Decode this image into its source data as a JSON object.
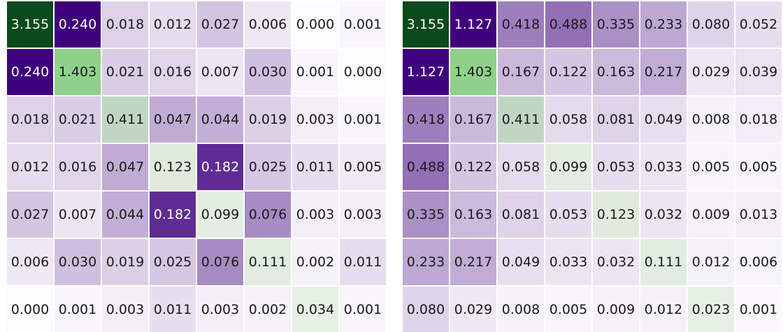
{
  "chart_data": [
    {
      "type": "heatmap",
      "title": "",
      "xlabel": "",
      "ylabel": "",
      "values": [
        [
          3.155,
          0.24,
          0.018,
          0.012,
          0.027,
          0.006,
          0.0,
          0.001
        ],
        [
          0.24,
          1.403,
          0.021,
          0.016,
          0.007,
          0.03,
          0.001,
          0.0
        ],
        [
          0.018,
          0.021,
          0.411,
          0.047,
          0.044,
          0.019,
          0.003,
          0.001
        ],
        [
          0.012,
          0.016,
          0.047,
          0.123,
          0.182,
          0.025,
          0.011,
          0.005
        ],
        [
          0.027,
          0.007,
          0.044,
          0.182,
          0.099,
          0.076,
          0.003,
          0.003
        ],
        [
          0.006,
          0.03,
          0.019,
          0.025,
          0.076,
          0.111,
          0.002,
          0.011
        ],
        [
          0.0,
          0.001,
          0.003,
          0.011,
          0.003,
          0.002,
          0.034,
          0.001
        ]
      ],
      "labels": [
        [
          "3.155",
          "0.240",
          "0.018",
          "0.012",
          "0.027",
          "0.006",
          "0.000",
          "0.001"
        ],
        [
          "0.240",
          "1.403",
          "0.021",
          "0.016",
          "0.007",
          "0.030",
          "0.001",
          "0.000"
        ],
        [
          "0.018",
          "0.021",
          "0.411",
          "0.047",
          "0.044",
          "0.019",
          "0.003",
          "0.001"
        ],
        [
          "0.012",
          "0.016",
          "0.047",
          "0.123",
          "0.182",
          "0.025",
          "0.011",
          "0.005"
        ],
        [
          "0.027",
          "0.007",
          "0.044",
          "0.182",
          "0.099",
          "0.076",
          "0.003",
          "0.003"
        ],
        [
          "0.006",
          "0.030",
          "0.019",
          "0.025",
          "0.076",
          "0.111",
          "0.002",
          "0.011"
        ],
        [
          "0.000",
          "0.001",
          "0.003",
          "0.011",
          "0.003",
          "0.002",
          "0.034",
          "0.001"
        ]
      ],
      "colormap": "diagonal green (Greens), off-diagonal purple (Purples)",
      "colors": {
        "diagonal_high": "#0b4a1c",
        "diagonal_low": "#f4fbf1",
        "offdiag_high": "#3f007d",
        "offdiag_low": "#fcfbfd"
      },
      "grid": true
    },
    {
      "type": "heatmap",
      "title": "",
      "xlabel": "",
      "ylabel": "",
      "values": [
        [
          3.155,
          1.127,
          0.418,
          0.488,
          0.335,
          0.233,
          0.08,
          0.052
        ],
        [
          1.127,
          1.403,
          0.167,
          0.122,
          0.163,
          0.217,
          0.029,
          0.039
        ],
        [
          0.418,
          0.167,
          0.411,
          0.058,
          0.081,
          0.049,
          0.008,
          0.018
        ],
        [
          0.488,
          0.122,
          0.058,
          0.099,
          0.053,
          0.033,
          0.005,
          0.005
        ],
        [
          0.335,
          0.163,
          0.081,
          0.053,
          0.123,
          0.032,
          0.009,
          0.013
        ],
        [
          0.233,
          0.217,
          0.049,
          0.033,
          0.032,
          0.111,
          0.012,
          0.006
        ],
        [
          0.08,
          0.029,
          0.008,
          0.005,
          0.009,
          0.012,
          0.023,
          0.001
        ]
      ],
      "labels": [
        [
          "3.155",
          "1.127",
          "0.418",
          "0.488",
          "0.335",
          "0.233",
          "0.080",
          "0.052"
        ],
        [
          "1.127",
          "1.403",
          "0.167",
          "0.122",
          "0.163",
          "0.217",
          "0.029",
          "0.039"
        ],
        [
          "0.418",
          "0.167",
          "0.411",
          "0.058",
          "0.081",
          "0.049",
          "0.008",
          "0.018"
        ],
        [
          "0.488",
          "0.122",
          "0.058",
          "0.099",
          "0.053",
          "0.033",
          "0.005",
          "0.005"
        ],
        [
          "0.335",
          "0.163",
          "0.081",
          "0.053",
          "0.123",
          "0.032",
          "0.009",
          "0.013"
        ],
        [
          "0.233",
          "0.217",
          "0.049",
          "0.033",
          "0.032",
          "0.111",
          "0.012",
          "0.006"
        ],
        [
          "0.080",
          "0.029",
          "0.008",
          "0.005",
          "0.009",
          "0.012",
          "0.023",
          "0.001"
        ]
      ],
      "colormap": "diagonal green (Greens), off-diagonal purple (Purples)",
      "colors": {
        "diagonal_high": "#0b4a1c",
        "diagonal_low": "#f4fbf1",
        "offdiag_high": "#3f007d",
        "offdiag_low": "#fcfbfd"
      },
      "grid": true
    }
  ]
}
